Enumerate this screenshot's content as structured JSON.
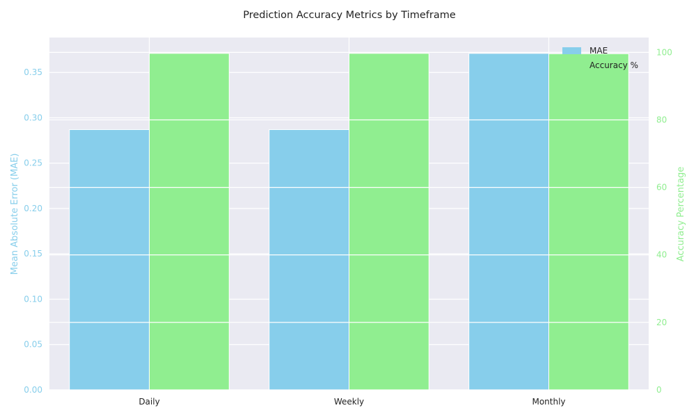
{
  "chart_data": {
    "type": "bar",
    "title": "Prediction Accuracy Metrics by Timeframe",
    "categories": [
      "Daily",
      "Weekly",
      "Monthly"
    ],
    "series": [
      {
        "name": "MAE",
        "axis": "left",
        "values": [
          0.287,
          0.287,
          0.371
        ],
        "color": "#87CEEB"
      },
      {
        "name": "Accuracy %",
        "axis": "right",
        "values": [
          99.7,
          99.7,
          99.6
        ],
        "color": "#90EE90"
      }
    ],
    "y_left": {
      "label": "Mean Absolute Error (MAE)",
      "ylim": [
        0,
        0.3885
      ],
      "ticks": [
        "0.00",
        "0.05",
        "0.10",
        "0.15",
        "0.20",
        "0.25",
        "0.30",
        "0.35"
      ],
      "color": "#87CEEB"
    },
    "y_right": {
      "label": "Accuracy Percentage",
      "ylim": [
        0,
        104.4
      ],
      "ticks": [
        "0",
        "20",
        "40",
        "60",
        "80",
        "100"
      ],
      "color": "#90EE90"
    },
    "grid": true,
    "legend_position": "top-right",
    "background": "#EAEAF2"
  }
}
